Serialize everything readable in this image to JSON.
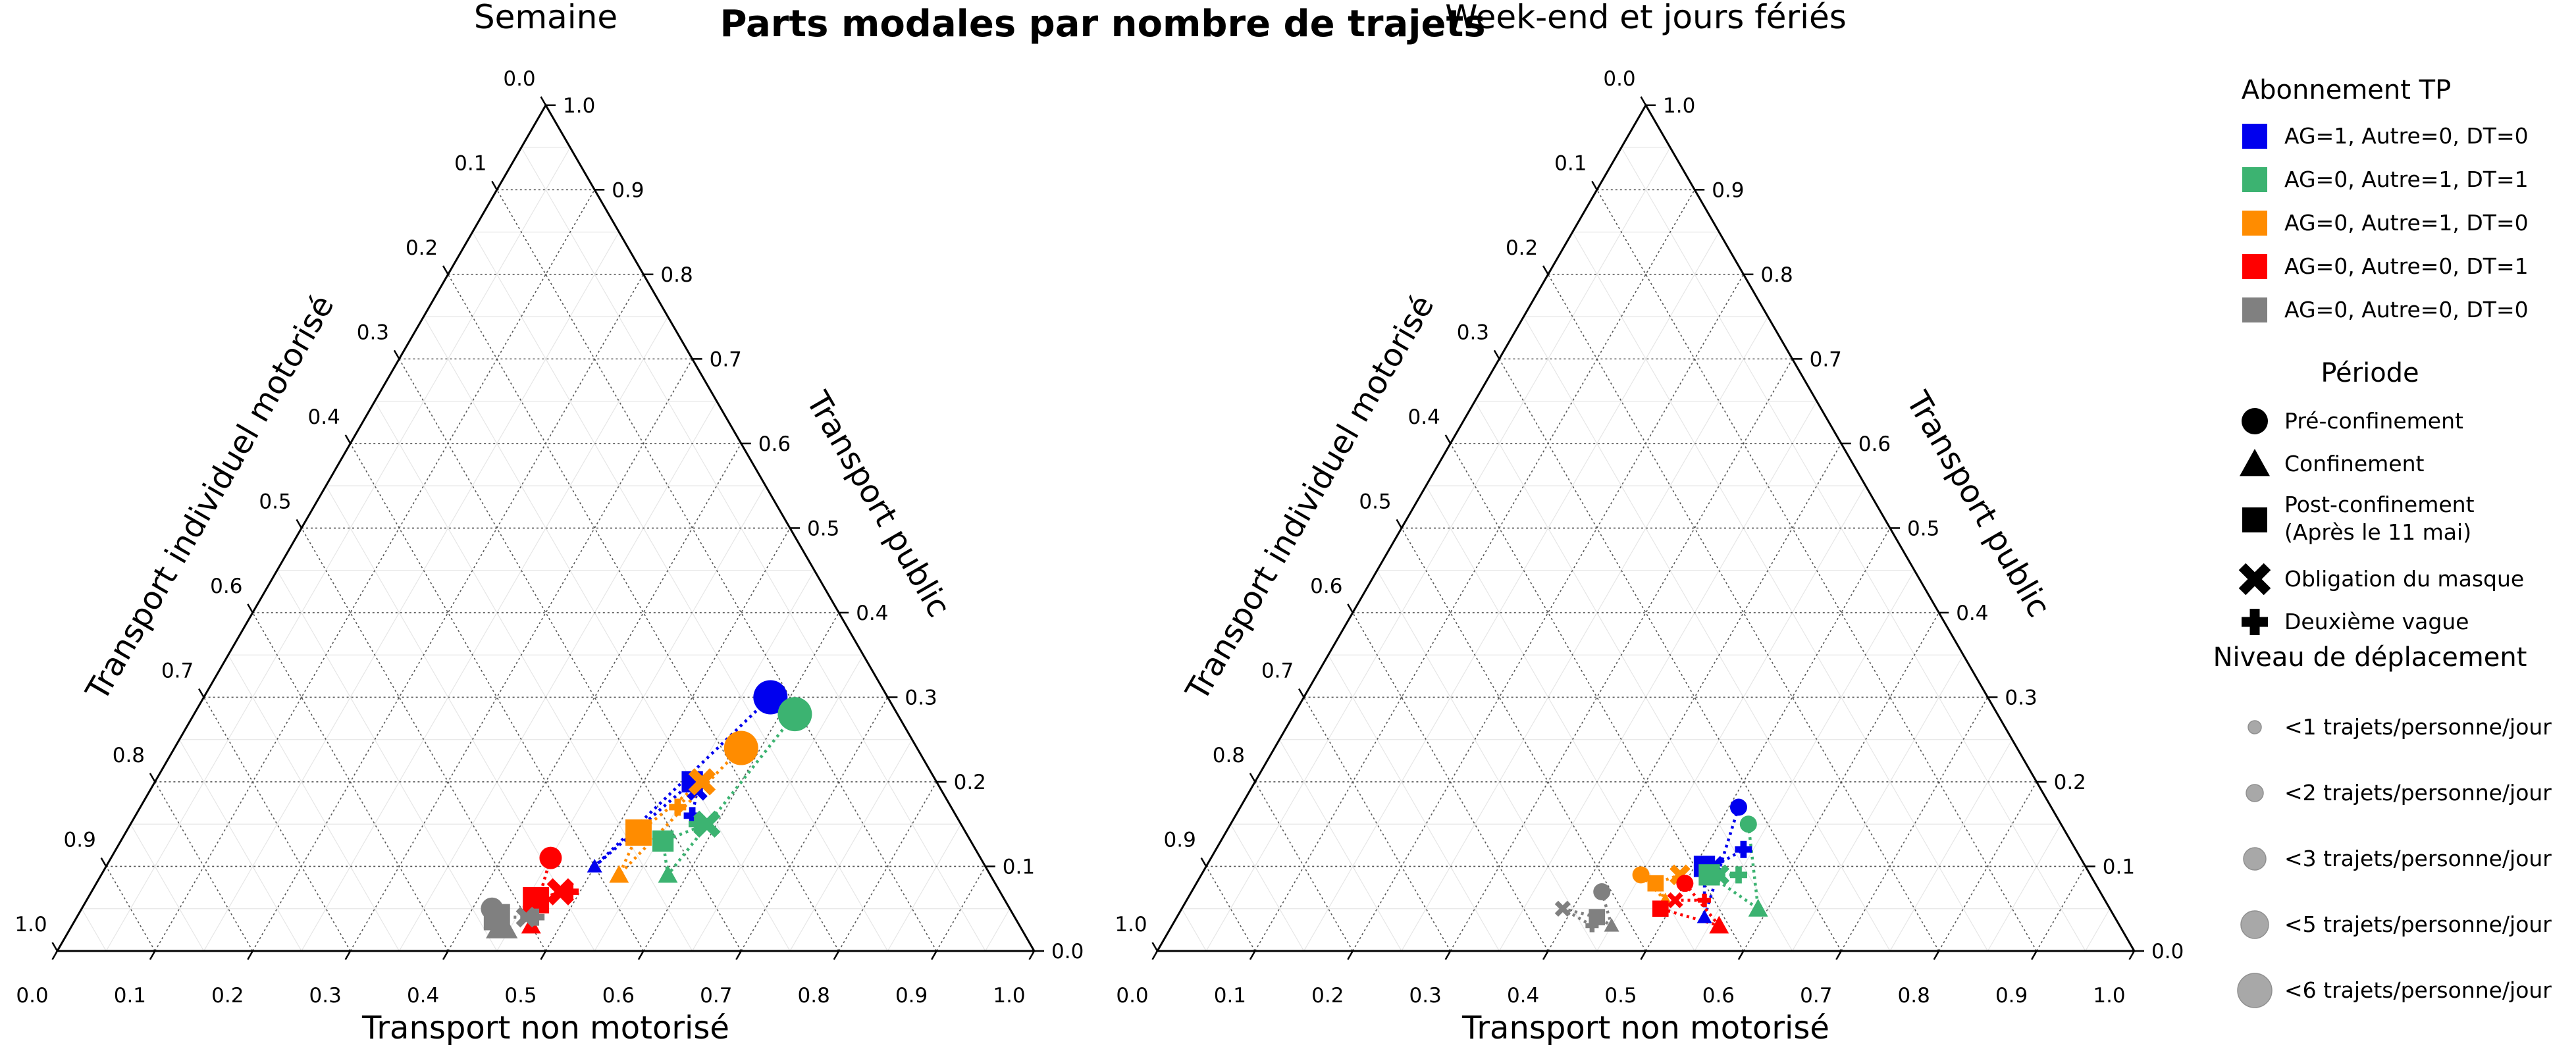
{
  "title": "Parts modales par nombre de trajets",
  "chart_data": [
    {
      "type": "scatter",
      "subtype": "ternary",
      "title": "Semaine",
      "axes": {
        "bottom": "Transport non motorisé",
        "left": "Transport individuel motorisé",
        "right": "Transport public"
      },
      "tick_labels": {
        "bottom": [
          "0.0",
          "0.1",
          "0.2",
          "0.3",
          "0.4",
          "0.5",
          "0.6",
          "0.7",
          "0.8",
          "0.9",
          "1.0"
        ],
        "left": [
          "0.0",
          "0.1",
          "0.2",
          "0.3",
          "0.4",
          "0.5",
          "0.6",
          "0.7",
          "0.8",
          "0.9",
          "1.0"
        ],
        "right": [
          "0.0",
          "0.1",
          "0.2",
          "0.3",
          "0.4",
          "0.5",
          "0.6",
          "0.7",
          "0.8",
          "0.9",
          "1.0"
        ]
      },
      "grid": true,
      "series": [
        {
          "group": "AG=1, Autre=0, DT=0",
          "color": "#0000ee",
          "line_style": "dotted",
          "points": [
            {
              "period": "Pré-confinement",
              "nonmot": 0.58,
              "public": 0.3,
              "trips": 5
            },
            {
              "period": "Confinement",
              "nonmot": 0.5,
              "public": 0.1,
              "trips": 1
            },
            {
              "period": "Post-confinement",
              "nonmot": 0.55,
              "public": 0.2,
              "trips": 3
            },
            {
              "period": "Obligation du masque",
              "nonmot": 0.56,
              "public": 0.19,
              "trips": 2
            },
            {
              "period": "Deuxième vague",
              "nonmot": 0.57,
              "public": 0.16,
              "trips": 2
            }
          ]
        },
        {
          "group": "AG=0, Autre=1, DT=1",
          "color": "#3cb371",
          "line_style": "dotted",
          "points": [
            {
              "period": "Pré-confinement",
              "nonmot": 0.615,
              "public": 0.28,
              "trips": 5
            },
            {
              "period": "Confinement",
              "nonmot": 0.58,
              "public": 0.09,
              "trips": 2
            },
            {
              "period": "Post-confinement",
              "nonmot": 0.555,
              "public": 0.13,
              "trips": 3
            },
            {
              "period": "Obligation du masque",
              "nonmot": 0.59,
              "public": 0.15,
              "trips": 3
            },
            {
              "period": "Deuxième vague",
              "nonmot": 0.58,
              "public": 0.15,
              "trips": 2
            }
          ]
        },
        {
          "group": "AG=0, Autre=1, DT=0",
          "color": "#ff8c00",
          "line_style": "dotted",
          "points": [
            {
              "period": "Pré-confinement",
              "nonmot": 0.58,
              "public": 0.24,
              "trips": 5
            },
            {
              "period": "Confinement",
              "nonmot": 0.53,
              "public": 0.09,
              "trips": 2
            },
            {
              "period": "Post-confinement",
              "nonmot": 0.525,
              "public": 0.14,
              "trips": 4
            },
            {
              "period": "Obligation du masque",
              "nonmot": 0.56,
              "public": 0.2,
              "trips": 3
            },
            {
              "period": "Deuxième vague",
              "nonmot": 0.55,
              "public": 0.17,
              "trips": 2
            }
          ]
        },
        {
          "group": "AG=0, Autre=0, DT=1",
          "color": "#ff0000",
          "line_style": "dotted",
          "points": [
            {
              "period": "Pré-confinement",
              "nonmot": 0.45,
              "public": 0.11,
              "trips": 3
            },
            {
              "period": "Confinement",
              "nonmot": 0.47,
              "public": 0.03,
              "trips": 2
            },
            {
              "period": "Post-confinement",
              "nonmot": 0.46,
              "public": 0.06,
              "trips": 4
            },
            {
              "period": "Obligation du masque",
              "nonmot": 0.48,
              "public": 0.07,
              "trips": 3
            },
            {
              "period": "Deuxième vague",
              "nonmot": 0.49,
              "public": 0.07,
              "trips": 2
            }
          ]
        },
        {
          "group": "AG=0, Autre=0, DT=0",
          "color": "#808080",
          "line_style": "dotted",
          "points": [
            {
              "period": "Pré-confinement",
              "nonmot": 0.42,
              "public": 0.05,
              "trips": 3
            },
            {
              "period": "Confinement",
              "nonmot": 0.44,
              "public": 0.03,
              "trips": 4
            },
            {
              "period": "Post-confinement",
              "nonmot": 0.43,
              "public": 0.04,
              "trips": 4
            },
            {
              "period": "Obligation du masque",
              "nonmot": 0.46,
              "public": 0.04,
              "trips": 2
            },
            {
              "period": "Deuxième vague",
              "nonmot": 0.47,
              "public": 0.04,
              "trips": 2
            }
          ]
        }
      ]
    },
    {
      "type": "scatter",
      "subtype": "ternary",
      "title": "Week-end et jours fériés",
      "axes": {
        "bottom": "Transport non motorisé",
        "left": "Transport individuel motorisé",
        "right": "Transport public"
      },
      "tick_labels": {
        "bottom": [
          "0.0",
          "0.1",
          "0.2",
          "0.3",
          "0.4",
          "0.5",
          "0.6",
          "0.7",
          "0.8",
          "0.9",
          "1.0"
        ],
        "left": [
          "0.0",
          "0.1",
          "0.2",
          "0.3",
          "0.4",
          "0.5",
          "0.6",
          "0.7",
          "0.8",
          "0.9",
          "1.0"
        ],
        "right": [
          "0.0",
          "0.1",
          "0.2",
          "0.3",
          "0.4",
          "0.5",
          "0.6",
          "0.7",
          "0.8",
          "0.9",
          "1.0"
        ]
      },
      "grid": true,
      "series": [
        {
          "group": "AG=1, Autre=0, DT=0",
          "color": "#0000ee",
          "line_style": "dotted",
          "points": [
            {
              "period": "Pré-confinement",
              "nonmot": 0.51,
              "public": 0.17,
              "trips": 2
            },
            {
              "period": "Confinement",
              "nonmot": 0.54,
              "public": 0.04,
              "trips": 1
            },
            {
              "period": "Post-confinement",
              "nonmot": 0.51,
              "public": 0.1,
              "trips": 3
            },
            {
              "period": "Obligation du masque",
              "nonmot": 0.52,
              "public": 0.1,
              "trips": 2
            },
            {
              "period": "Deuxième vague",
              "nonmot": 0.54,
              "public": 0.12,
              "trips": 2
            }
          ]
        },
        {
          "group": "AG=0, Autre=1, DT=1",
          "color": "#3cb371",
          "line_style": "dotted",
          "points": [
            {
              "period": "Pré-confinement",
              "nonmot": 0.53,
              "public": 0.15,
              "trips": 2
            },
            {
              "period": "Confinement",
              "nonmot": 0.59,
              "public": 0.05,
              "trips": 2
            },
            {
              "period": "Post-confinement",
              "nonmot": 0.52,
              "public": 0.09,
              "trips": 3
            },
            {
              "period": "Obligation du masque",
              "nonmot": 0.53,
              "public": 0.09,
              "trips": 2
            },
            {
              "period": "Deuxième vague",
              "nonmot": 0.55,
              "public": 0.09,
              "trips": 2
            }
          ]
        },
        {
          "group": "AG=0, Autre=1, DT=0",
          "color": "#ff8c00",
          "line_style": "dotted",
          "points": [
            {
              "period": "Pré-confinement",
              "nonmot": 0.45,
              "public": 0.09,
              "trips": 2
            },
            {
              "period": "Confinement",
              "nonmot": 0.49,
              "public": 0.06,
              "trips": 1
            },
            {
              "period": "Post-confinement",
              "nonmot": 0.47,
              "public": 0.08,
              "trips": 2
            },
            {
              "period": "Obligation du masque",
              "nonmot": 0.49,
              "public": 0.09,
              "trips": 2
            },
            {
              "period": "Deuxième vague",
              "nonmot": 0.5,
              "public": 0.08,
              "trips": 1
            }
          ]
        },
        {
          "group": "AG=0, Autre=0, DT=1",
          "color": "#ff0000",
          "line_style": "dotted",
          "points": [
            {
              "period": "Pré-confinement",
              "nonmot": 0.5,
              "public": 0.08,
              "trips": 2
            },
            {
              "period": "Confinement",
              "nonmot": 0.56,
              "public": 0.03,
              "trips": 2
            },
            {
              "period": "Post-confinement",
              "nonmot": 0.49,
              "public": 0.05,
              "trips": 2
            },
            {
              "period": "Obligation du masque",
              "nonmot": 0.5,
              "public": 0.06,
              "trips": 1
            },
            {
              "period": "Deuxième vague",
              "nonmot": 0.53,
              "public": 0.06,
              "trips": 1
            }
          ]
        },
        {
          "group": "AG=0, Autre=0, DT=0",
          "color": "#808080",
          "line_style": "dotted",
          "points": [
            {
              "period": "Pré-confinement",
              "nonmot": 0.42,
              "public": 0.07,
              "trips": 2
            },
            {
              "period": "Confinement",
              "nonmot": 0.45,
              "public": 0.03,
              "trips": 1
            },
            {
              "period": "Post-confinement",
              "nonmot": 0.43,
              "public": 0.04,
              "trips": 2
            },
            {
              "period": "Obligation du masque",
              "nonmot": 0.39,
              "public": 0.05,
              "trips": 1
            },
            {
              "period": "Deuxième vague",
              "nonmot": 0.43,
              "public": 0.03,
              "trips": 1
            }
          ]
        }
      ]
    }
  ],
  "legend": {
    "placement": "right",
    "groups_title": "Abonnement TP",
    "groups": [
      {
        "label": "AG=1, Autre=0, DT=0",
        "color": "#0000ee"
      },
      {
        "label": "AG=0, Autre=1, DT=1",
        "color": "#3cb371"
      },
      {
        "label": "AG=0, Autre=1, DT=0",
        "color": "#ff8c00"
      },
      {
        "label": "AG=0, Autre=0, DT=1",
        "color": "#ff0000"
      },
      {
        "label": "AG=0, Autre=0, DT=0",
        "color": "#808080"
      }
    ],
    "periods_title": "Période",
    "periods": [
      {
        "marker": "circle",
        "label": "Pré-confinement"
      },
      {
        "marker": "triangle",
        "label": "Confinement"
      },
      {
        "marker": "square",
        "label": "Post-confinement",
        "label2": "(Après le 11 mai)"
      },
      {
        "marker": "x",
        "label": "Obligation du masque"
      },
      {
        "marker": "plus",
        "label": "Deuxième vague"
      }
    ],
    "levels_title": "Niveau de déplacement",
    "levels": [
      {
        "trips": 1,
        "label": "<1 trajets/personne/jour"
      },
      {
        "trips": 2,
        "label": "<2 trajets/personne/jour"
      },
      {
        "trips": 3,
        "label": "<3 trajets/personne/jour"
      },
      {
        "trips": 4,
        "label": "<5 trajets/personne/jour"
      },
      {
        "trips": 5,
        "label": "<6 trajets/personne/jour"
      }
    ]
  }
}
